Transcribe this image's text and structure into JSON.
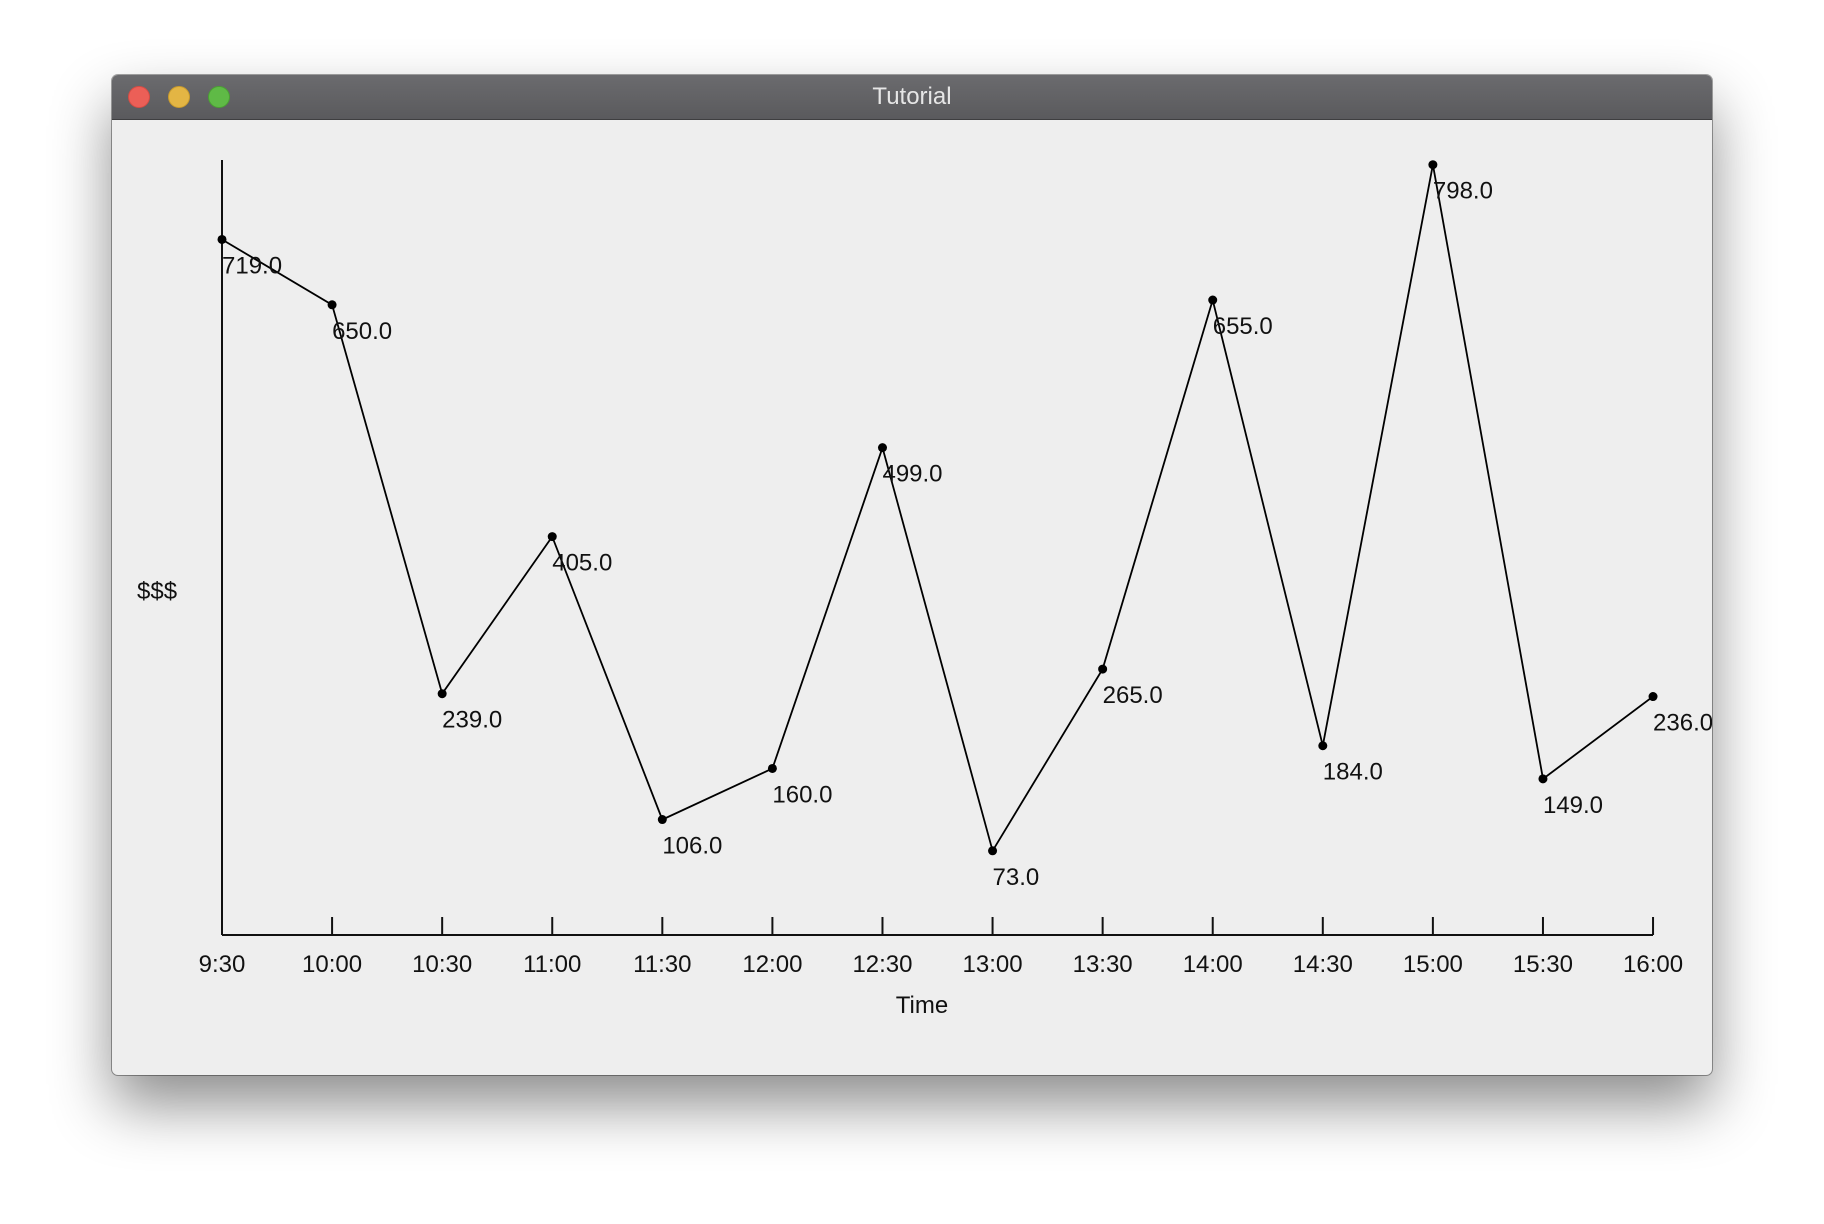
{
  "window": {
    "title": "Tutorial",
    "buttons": {
      "close_color": "#ec5f57",
      "minimize_color": "#e3b544",
      "maximize_color": "#5fba46"
    }
  },
  "chart_data": {
    "type": "line",
    "title": "",
    "xlabel": "Time",
    "ylabel": "$$$",
    "categories": [
      "9:30",
      "10:00",
      "10:30",
      "11:00",
      "11:30",
      "12:00",
      "12:30",
      "13:00",
      "13:30",
      "14:00",
      "14:30",
      "15:00",
      "15:30",
      "16:00"
    ],
    "series": [
      {
        "values": [
          719.0,
          650.0,
          239.0,
          405.0,
          106.0,
          160.0,
          499.0,
          73.0,
          265.0,
          655.0,
          184.0,
          798.0,
          149.0,
          236.0
        ],
        "labels": [
          "719.0",
          "650.0",
          "239.0",
          "405.0",
          "106.0",
          "160.0",
          "499.0",
          "73.0",
          "265.0",
          "655.0",
          "184.0",
          "798.0",
          "149.0",
          "236.0"
        ],
        "color": "#000000",
        "markers": true
      }
    ],
    "ylim": [
      -16,
      803
    ],
    "grid": false,
    "legend": "none",
    "y_tick_labels": false
  }
}
